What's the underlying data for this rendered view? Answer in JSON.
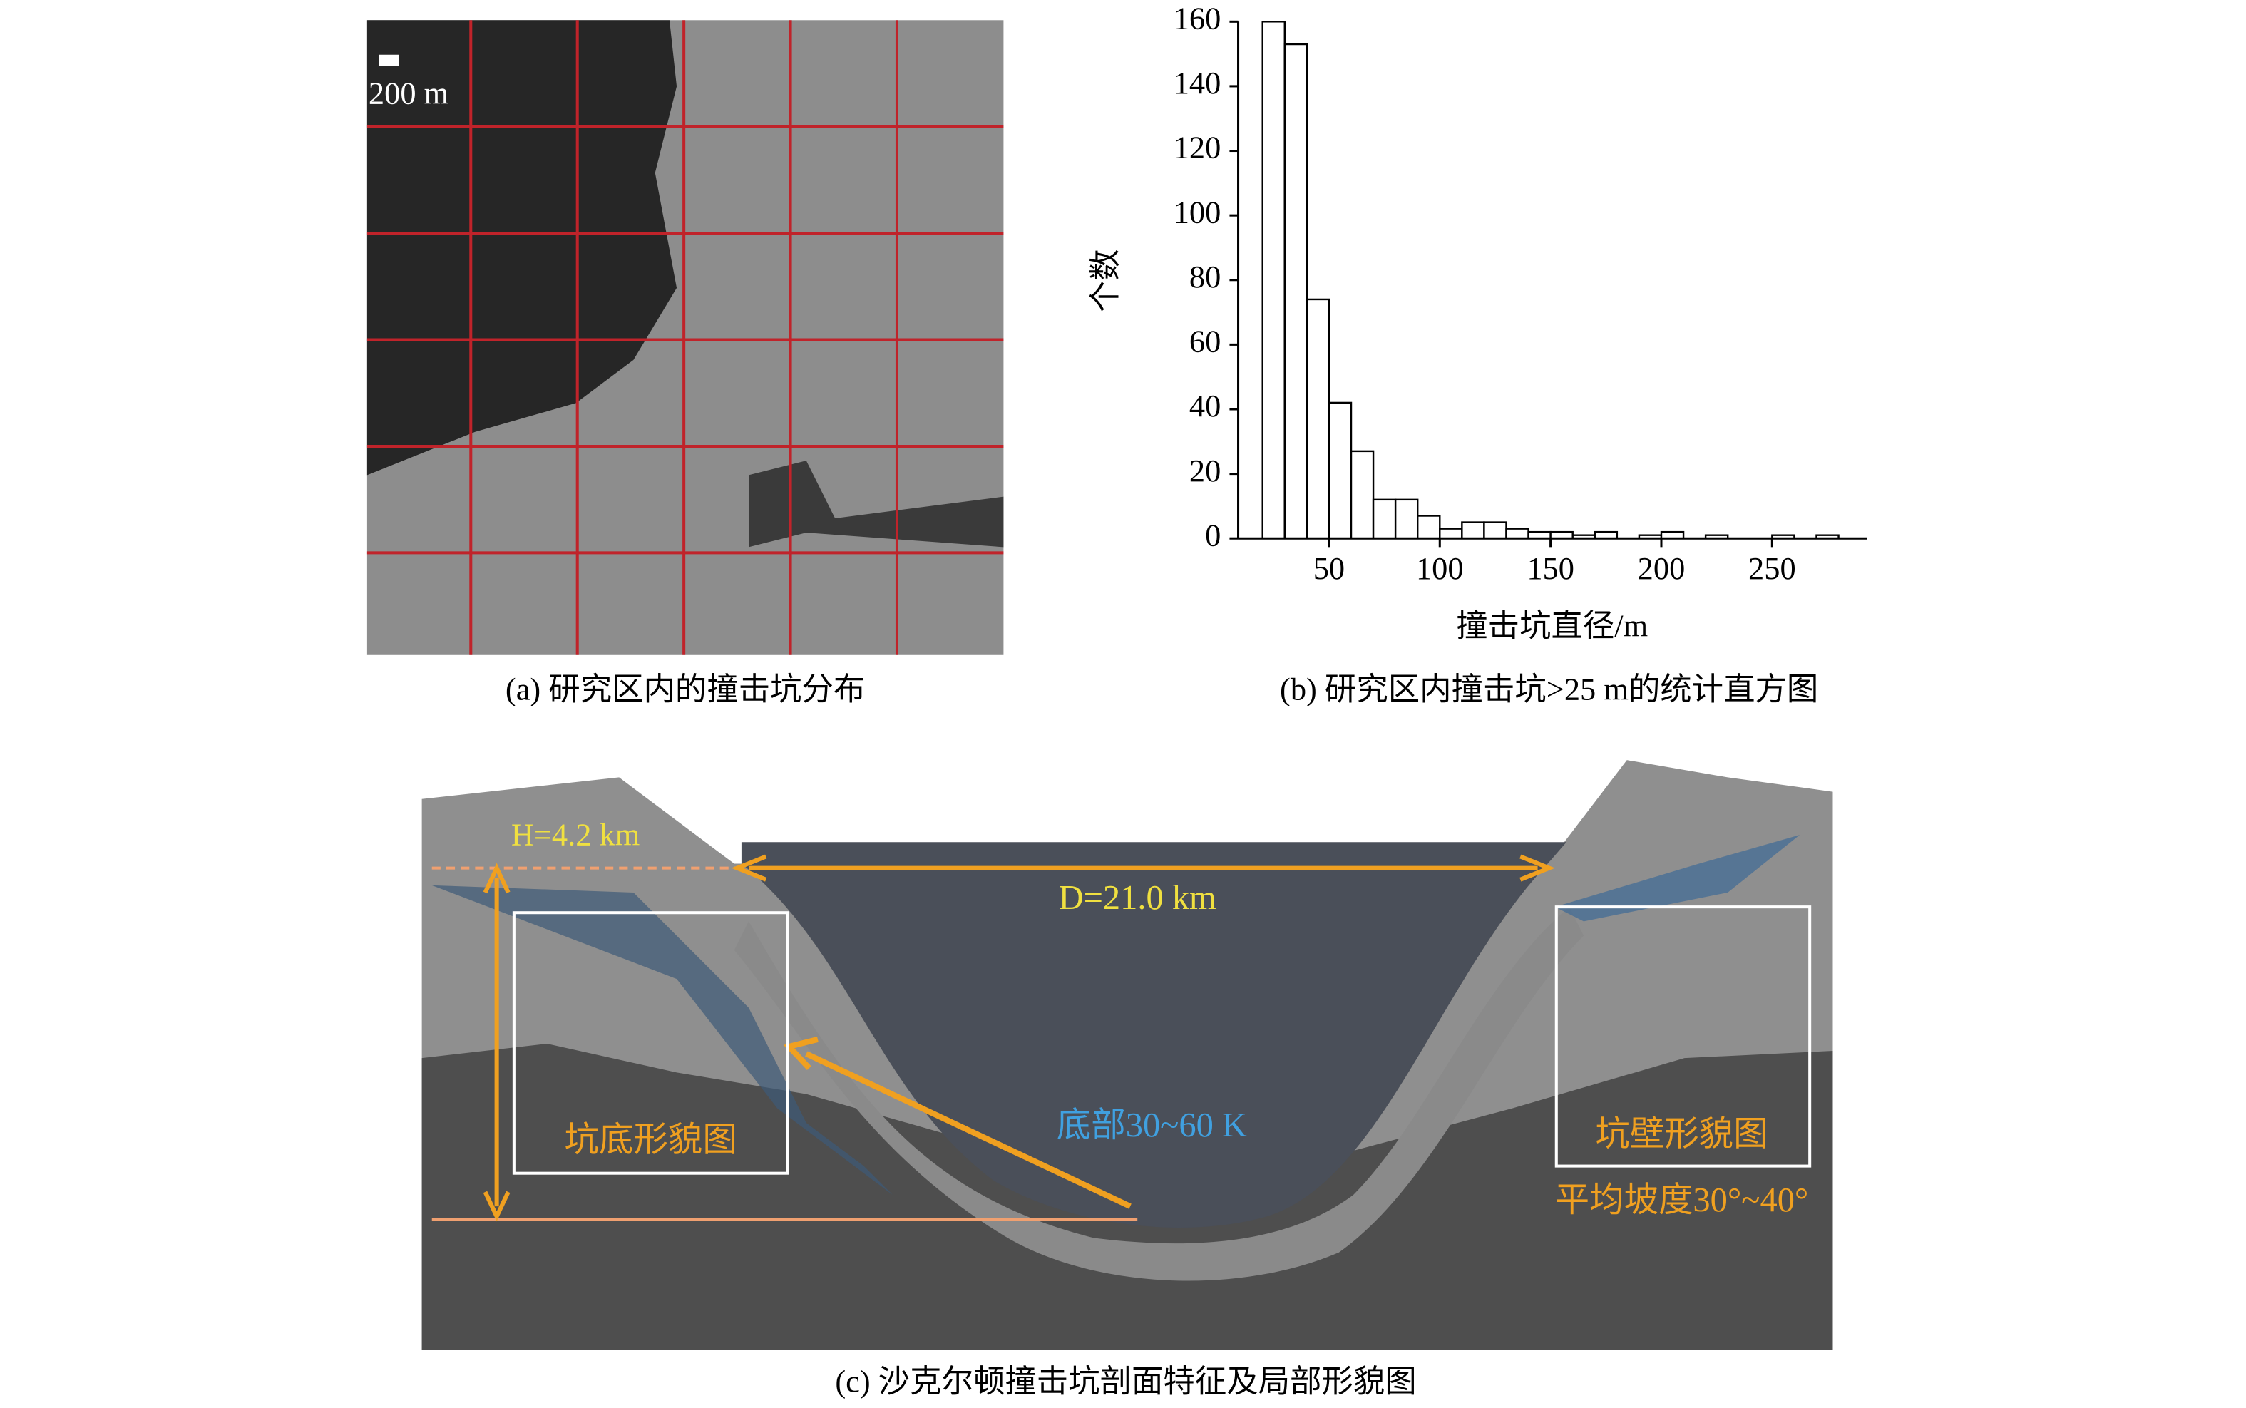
{
  "chart_data": {
    "type": "histogram",
    "caption": "(b) 研究区内撞击坑>25 m的统计直方图",
    "xlabel": "撞击坑直径/m",
    "ylabel": "个数",
    "bins": [
      20,
      30,
      40,
      50,
      60,
      70,
      80,
      90,
      100,
      110,
      120,
      130,
      140,
      150,
      160,
      170,
      180,
      190,
      200,
      210,
      220,
      230,
      240,
      250,
      260,
      270,
      280
    ],
    "values": [
      160,
      153,
      74,
      42,
      27,
      12,
      12,
      7,
      3,
      5,
      5,
      3,
      2,
      2,
      1,
      2,
      0,
      1,
      2,
      0,
      1,
      0,
      0,
      1,
      0,
      1
    ],
    "xlim": [
      9,
      293
    ],
    "xticks": [
      50,
      100,
      150,
      200,
      250
    ],
    "ylim": [
      0,
      160
    ],
    "yticks": [
      0,
      20,
      40,
      60,
      80,
      100,
      120,
      140,
      160
    ],
    "color": "#ffffff",
    "edgecolor": "#000000"
  },
  "panel_a": {
    "scale_label": "200 m",
    "caption": "(a) 研究区内的撞击坑分布"
  },
  "panel_c": {
    "height_label": "H=4.2 km",
    "diameter_label": "D=21.0 km",
    "floor_box_label": "坑底形貌图",
    "floor_temp_label": "底部30~60 K",
    "wall_box_label": "坑壁形貌图",
    "slope_label": "平均坡度30°~40°",
    "caption": "(c) 沙克尔顿撞击坑剖面特征及局部形貌图"
  }
}
